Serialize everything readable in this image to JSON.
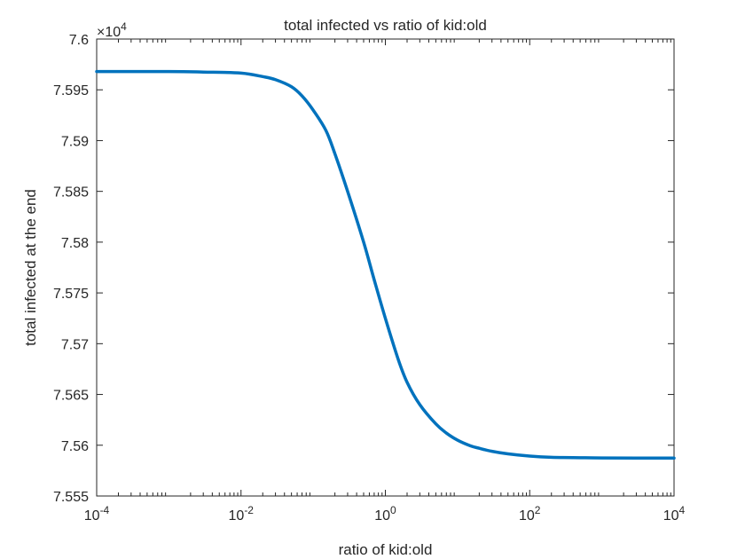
{
  "chart_data": {
    "type": "line",
    "title": "total infected vs ratio of kid:old",
    "xlabel": "ratio of kid:old",
    "ylabel": "total infected at the end",
    "xscale": "log",
    "xlim": [
      0.0001,
      10000
    ],
    "ylim": [
      75550,
      76000
    ],
    "y_exponent_label": "×10",
    "y_exponent_power": "4",
    "x_ticks": [
      {
        "value": 0.0001,
        "base": "10",
        "exp": "-4"
      },
      {
        "value": 0.01,
        "base": "10",
        "exp": "-2"
      },
      {
        "value": 1,
        "base": "10",
        "exp": "0"
      },
      {
        "value": 100,
        "base": "10",
        "exp": "2"
      },
      {
        "value": 10000,
        "base": "10",
        "exp": "4"
      }
    ],
    "y_ticks": [
      {
        "value": 75550,
        "label": "7.555"
      },
      {
        "value": 75600,
        "label": "7.56"
      },
      {
        "value": 75650,
        "label": "7.565"
      },
      {
        "value": 75700,
        "label": "7.57"
      },
      {
        "value": 75750,
        "label": "7.575"
      },
      {
        "value": 75800,
        "label": "7.58"
      },
      {
        "value": 75850,
        "label": "7.585"
      },
      {
        "value": 75900,
        "label": "7.59"
      },
      {
        "value": 75950,
        "label": "7.595"
      },
      {
        "value": 76000,
        "label": "7.6"
      }
    ],
    "grid": false,
    "line_color": "#0072bd",
    "series": [
      {
        "x": [
          0.0001,
          0.001,
          0.003,
          0.01,
          0.02,
          0.03,
          0.05,
          0.07,
          0.1,
          0.15,
          0.2,
          0.3,
          0.5,
          0.7,
          1,
          1.5,
          2,
          3,
          5,
          7,
          10,
          15,
          20,
          30,
          50,
          100,
          200,
          500,
          1000,
          10000
        ],
        "y": [
          75968,
          75968,
          75967.5,
          75966.5,
          75963,
          75960,
          75953,
          75944,
          75930,
          75910,
          75887,
          75850,
          75800,
          75763,
          75725,
          75685,
          75662,
          75640,
          75621,
          75612,
          75605,
          75599.5,
          75597,
          75594,
          75591.5,
          75589.3,
          75588.1,
          75587.7,
          75587.5,
          75587.3
        ]
      }
    ]
  }
}
